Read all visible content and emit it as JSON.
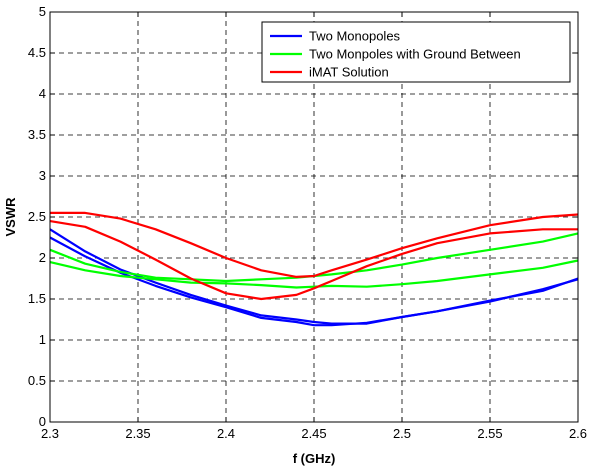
{
  "chart_data": {
    "type": "line",
    "title": "",
    "xlabel": "f (GHz)",
    "ylabel": "VSWR",
    "xlim": [
      2.3,
      2.6
    ],
    "ylim": [
      0,
      5
    ],
    "xticks": [
      "2.3",
      "2.35",
      "2.4",
      "2.45",
      "2.5",
      "2.55",
      "2.6"
    ],
    "yticks": [
      "0",
      "0.5",
      "1",
      "1.5",
      "2",
      "2.5",
      "3",
      "3.5",
      "4",
      "4.5",
      "5"
    ],
    "grid": true,
    "legend_position": "top-right",
    "legend": [
      {
        "label": "Two Monopoles",
        "color": "#0000ff"
      },
      {
        "label": "Two Monpoles with Ground Between",
        "color": "#00ff00"
      },
      {
        "label": "iMAT Solution",
        "color": "#ff0000"
      }
    ],
    "series": [
      {
        "legend_index": 0,
        "color": "#0000ff",
        "x": [
          2.3,
          2.32,
          2.34,
          2.36,
          2.38,
          2.4,
          2.42,
          2.44,
          2.45,
          2.46,
          2.48,
          2.5,
          2.52,
          2.55,
          2.58,
          2.6
        ],
        "y": [
          2.35,
          2.08,
          1.86,
          1.7,
          1.55,
          1.42,
          1.3,
          1.25,
          1.22,
          1.2,
          1.2,
          1.28,
          1.35,
          1.48,
          1.6,
          1.75
        ]
      },
      {
        "legend_index": 0,
        "color": "#0000ff",
        "x": [
          2.3,
          2.32,
          2.34,
          2.36,
          2.38,
          2.4,
          2.42,
          2.44,
          2.45,
          2.46,
          2.48,
          2.5,
          2.52,
          2.55,
          2.58,
          2.6
        ],
        "y": [
          2.25,
          2.02,
          1.82,
          1.66,
          1.52,
          1.4,
          1.27,
          1.22,
          1.18,
          1.18,
          1.21,
          1.28,
          1.35,
          1.47,
          1.62,
          1.74
        ]
      },
      {
        "legend_index": 1,
        "color": "#00ff00",
        "x": [
          2.3,
          2.32,
          2.34,
          2.36,
          2.38,
          2.4,
          2.42,
          2.44,
          2.45,
          2.46,
          2.48,
          2.5,
          2.52,
          2.55,
          2.58,
          2.6
        ],
        "y": [
          2.1,
          1.93,
          1.83,
          1.76,
          1.74,
          1.72,
          1.74,
          1.76,
          1.78,
          1.8,
          1.85,
          1.92,
          2.0,
          2.1,
          2.2,
          2.3
        ]
      },
      {
        "legend_index": 1,
        "color": "#00ff00",
        "x": [
          2.3,
          2.32,
          2.34,
          2.36,
          2.38,
          2.4,
          2.42,
          2.44,
          2.45,
          2.46,
          2.48,
          2.5,
          2.52,
          2.55,
          2.58,
          2.6
        ],
        "y": [
          1.95,
          1.85,
          1.78,
          1.74,
          1.7,
          1.69,
          1.67,
          1.64,
          1.65,
          1.66,
          1.65,
          1.68,
          1.72,
          1.8,
          1.88,
          1.97
        ]
      },
      {
        "legend_index": 2,
        "color": "#ff0000",
        "x": [
          2.3,
          2.32,
          2.34,
          2.36,
          2.38,
          2.4,
          2.42,
          2.44,
          2.45,
          2.46,
          2.48,
          2.5,
          2.52,
          2.55,
          2.58,
          2.6
        ],
        "y": [
          2.55,
          2.55,
          2.48,
          2.35,
          2.18,
          2.0,
          1.85,
          1.77,
          1.78,
          1.85,
          1.98,
          2.12,
          2.24,
          2.4,
          2.5,
          2.53
        ]
      },
      {
        "legend_index": 2,
        "color": "#ff0000",
        "x": [
          2.3,
          2.32,
          2.34,
          2.36,
          2.38,
          2.4,
          2.42,
          2.44,
          2.45,
          2.46,
          2.48,
          2.5,
          2.52,
          2.55,
          2.58,
          2.6
        ],
        "y": [
          2.45,
          2.38,
          2.2,
          1.98,
          1.75,
          1.57,
          1.5,
          1.55,
          1.63,
          1.72,
          1.9,
          2.05,
          2.18,
          2.3,
          2.35,
          2.35
        ]
      }
    ]
  }
}
